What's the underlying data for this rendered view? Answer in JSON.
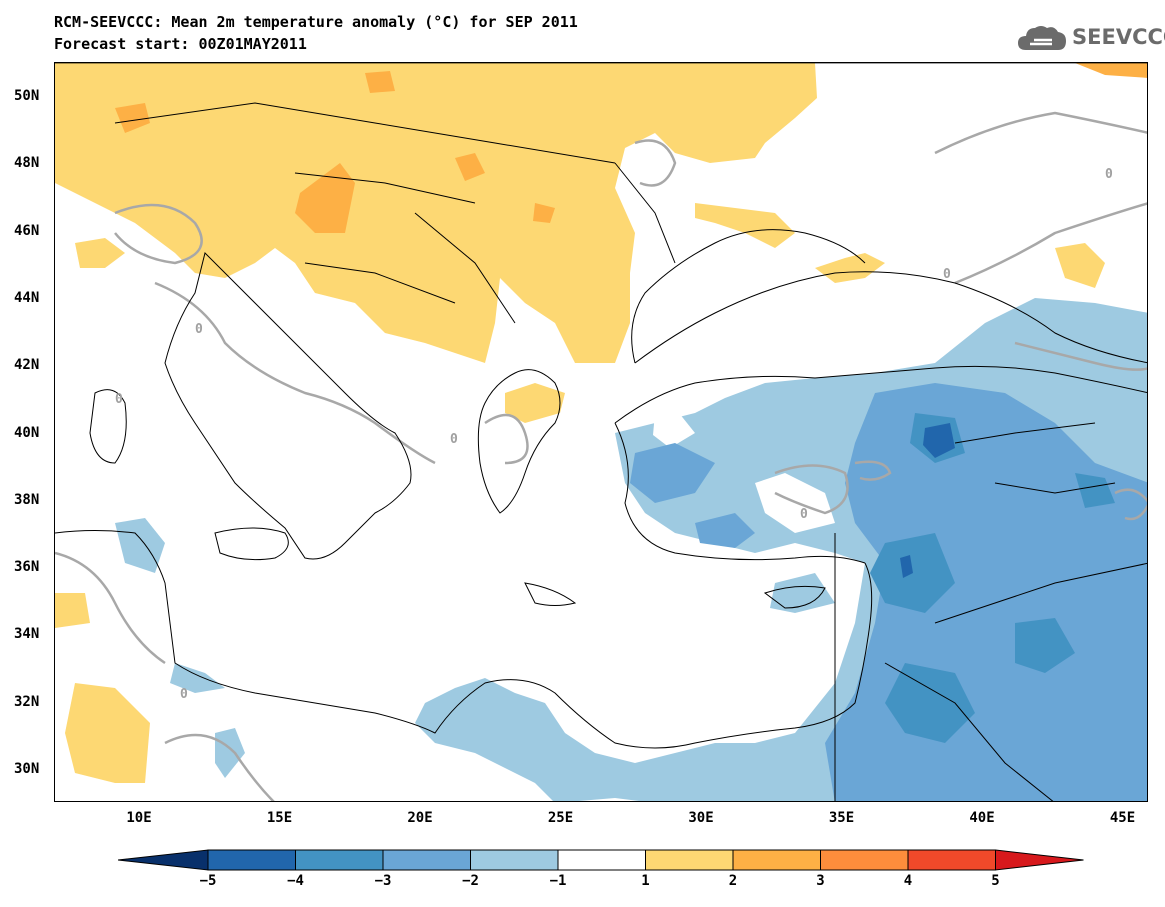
{
  "header": {
    "title": "RCM-SEEVCCC: Mean 2m temperature anomaly (°C) for SEP 2011",
    "subtitle": "Forecast start: 00Z01MAY2011"
  },
  "logo": {
    "text": "SEEVCCC",
    "icon": "cloud-icon"
  },
  "map": {
    "lat_labels": [
      "50N",
      "48N",
      "46N",
      "44N",
      "42N",
      "40N",
      "38N",
      "36N",
      "34N",
      "32N",
      "30N"
    ],
    "lon_labels": [
      "10E",
      "15E",
      "20E",
      "25E",
      "30E",
      "35E",
      "40E",
      "45E"
    ],
    "contour_label": "0"
  },
  "legend": {
    "labels": [
      "−5",
      "−4",
      "−3",
      "−2",
      "−1",
      "1",
      "2",
      "3",
      "4",
      "5"
    ],
    "colors": [
      "#08306b",
      "#2166ac",
      "#4393c3",
      "#6aa6d6",
      "#9ecae1",
      "#ffffff",
      "#fdd873",
      "#fdb045",
      "#fd8d3c",
      "#f0492a",
      "#d7191c"
    ]
  }
}
